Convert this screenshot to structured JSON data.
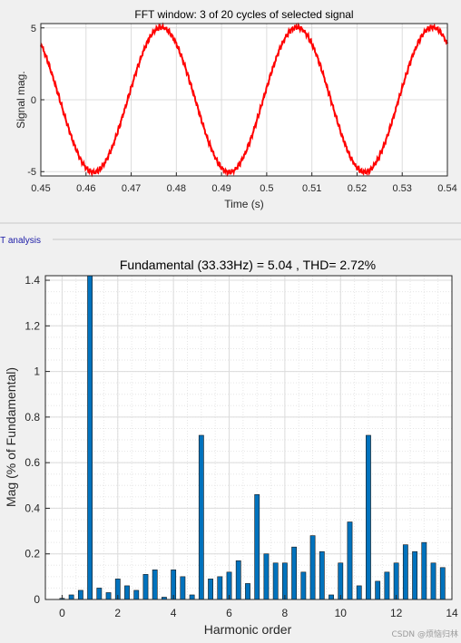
{
  "panel_label": "FT analysis",
  "watermark": "CSDN @烦恼归林",
  "colors": {
    "signal": "#ff0000",
    "bar": "#0072bd",
    "grid": "#dcdcdc"
  },
  "chart_data": [
    {
      "type": "line",
      "title": "FFT window: 3 of 20 cycles of selected signal",
      "xlabel": "Time (s)",
      "ylabel": "Signal mag.",
      "xlim": [
        0.45,
        0.54
      ],
      "ylim": [
        -5.3,
        5.3
      ],
      "xticks": [
        "0.45",
        "0.46",
        "0.47",
        "0.48",
        "0.49",
        "0.5",
        "0.51",
        "0.52",
        "0.53",
        "0.54"
      ],
      "yticks": [
        "-5",
        "0",
        "5"
      ],
      "grid": true,
      "series": [
        {
          "amplitude": 5.04,
          "frequency_hz": 33.33,
          "peak_time_s": 0.4767,
          "noise": "small ripple"
        }
      ]
    },
    {
      "type": "bar",
      "title": "Fundamental (33.33Hz) = 5.04 , THD= 2.72%",
      "xlabel": "Harmonic order",
      "ylabel": "Mag (% of Fundamental)",
      "xlim": [
        -0.6,
        14
      ],
      "ylim": [
        0,
        1.42
      ],
      "xticks": [
        "0",
        "2",
        "4",
        "6",
        "8",
        "10",
        "12",
        "14"
      ],
      "yticks": [
        "0",
        "0.2",
        "0.4",
        "0.6",
        "0.8",
        "1",
        "1.2",
        "1.4"
      ],
      "grid": true,
      "x": [
        0,
        0.333,
        0.667,
        1,
        1.333,
        1.667,
        2,
        2.333,
        2.667,
        3,
        3.333,
        3.667,
        4,
        4.333,
        4.667,
        5,
        5.333,
        5.667,
        6,
        6.333,
        6.667,
        7,
        7.333,
        7.667,
        8,
        8.333,
        8.667,
        9,
        9.333,
        9.667,
        10,
        10.333,
        10.667,
        11,
        11.333,
        11.667,
        12,
        12.333,
        12.667,
        13,
        13.333,
        13.667
      ],
      "values": [
        0.005,
        0.02,
        0.04,
        1.42,
        0.05,
        0.03,
        0.09,
        0.06,
        0.04,
        0.11,
        0.13,
        0.01,
        0.13,
        0.1,
        0.02,
        0.72,
        0.09,
        0.1,
        0.12,
        0.17,
        0.07,
        0.46,
        0.2,
        0.16,
        0.16,
        0.23,
        0.12,
        0.28,
        0.21,
        0.02,
        0.16,
        0.34,
        0.06,
        0.72,
        0.08,
        0.12,
        0.16,
        0.24,
        0.21,
        0.25,
        0.16,
        0.14
      ]
    }
  ]
}
